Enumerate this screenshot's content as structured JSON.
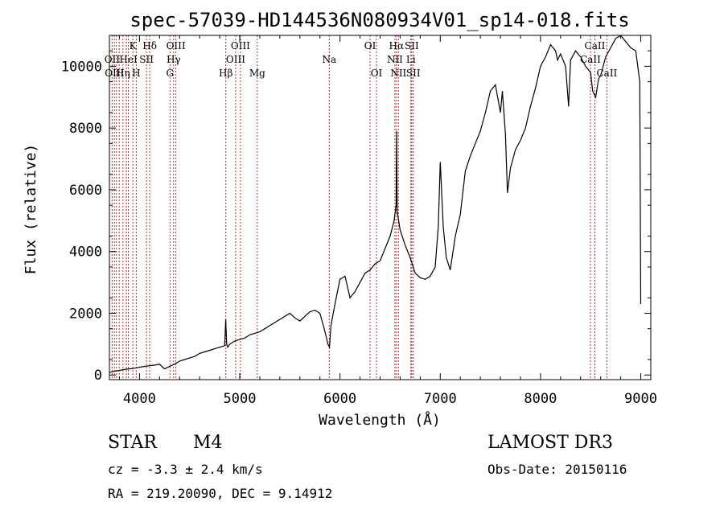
{
  "chart_data": {
    "type": "line",
    "title": "spec-57039-HD144536N080934V01_sp14-018.fits",
    "xlabel": "Wavelength (Å)",
    "ylabel": "Flux (relative)",
    "xlim": [
      3700,
      9100
    ],
    "ylim": [
      -150,
      11000
    ],
    "xticks": [
      4000,
      5000,
      6000,
      7000,
      8000,
      9000
    ],
    "yticks": [
      0,
      2000,
      4000,
      6000,
      8000,
      10000
    ],
    "series": [
      {
        "name": "flux",
        "x": [
          3700,
          3750,
          3800,
          3850,
          3900,
          3950,
          4000,
          4050,
          4100,
          4150,
          4200,
          4250,
          4300,
          4350,
          4400,
          4450,
          4500,
          4550,
          4600,
          4650,
          4700,
          4750,
          4800,
          4850,
          4860,
          4870,
          4880,
          4900,
          4950,
          5000,
          5050,
          5100,
          5150,
          5200,
          5250,
          5300,
          5350,
          5400,
          5450,
          5500,
          5550,
          5600,
          5650,
          5700,
          5750,
          5800,
          5850,
          5880,
          5895,
          5910,
          5950,
          6000,
          6050,
          6100,
          6150,
          6200,
          6250,
          6300,
          6350,
          6400,
          6450,
          6500,
          6540,
          6560,
          6565,
          6570,
          6600,
          6650,
          6700,
          6750,
          6800,
          6850,
          6900,
          6950,
          6980,
          7000,
          7030,
          7060,
          7100,
          7150,
          7200,
          7250,
          7300,
          7350,
          7400,
          7450,
          7500,
          7550,
          7600,
          7620,
          7650,
          7670,
          7700,
          7750,
          7800,
          7850,
          7900,
          7950,
          8000,
          8050,
          8100,
          8150,
          8170,
          8200,
          8250,
          8280,
          8300,
          8350,
          8400,
          8450,
          8500,
          8520,
          8550,
          8580,
          8600,
          8650,
          8700,
          8750,
          8800,
          8850,
          8900,
          8950,
          8990,
          9000
        ],
        "y": [
          80,
          120,
          150,
          180,
          200,
          220,
          250,
          280,
          300,
          320,
          350,
          200,
          280,
          350,
          450,
          500,
          550,
          600,
          700,
          750,
          800,
          850,
          900,
          950,
          1800,
          1000,
          900,
          1000,
          1100,
          1150,
          1200,
          1300,
          1350,
          1400,
          1500,
          1600,
          1700,
          1800,
          1900,
          2000,
          1850,
          1750,
          1900,
          2050,
          2100,
          2000,
          1400,
          1000,
          900,
          1600,
          2300,
          3100,
          3200,
          2500,
          2700,
          3000,
          3300,
          3400,
          3600,
          3700,
          4100,
          4500,
          5000,
          5500,
          7900,
          5300,
          4700,
          4200,
          3800,
          3300,
          3150,
          3100,
          3200,
          3500,
          4800,
          6900,
          4800,
          3800,
          3400,
          4500,
          5200,
          6600,
          7100,
          7500,
          7900,
          8500,
          9200,
          9400,
          8500,
          9200,
          7800,
          5900,
          6700,
          7300,
          7600,
          8000,
          8700,
          9300,
          10000,
          10300,
          10700,
          10500,
          10200,
          10400,
          10000,
          8700,
          10200,
          10500,
          10300,
          10000,
          9800,
          9200,
          9000,
          9600,
          9700,
          10300,
          10600,
          10900,
          11000,
          10800,
          10600,
          10500,
          9500,
          2300
        ]
      }
    ],
    "lines": [
      {
        "w": 3727,
        "label": "OII",
        "row": 1
      },
      {
        "w": 3750,
        "label": "OIII",
        "row": 2
      },
      {
        "w": 3770,
        "label": "",
        "row": 0
      },
      {
        "w": 3798,
        "label": "",
        "row": 0
      },
      {
        "w": 3835,
        "label": "Hη",
        "row": 2
      },
      {
        "w": 3869,
        "label": "",
        "row": 0
      },
      {
        "w": 3889,
        "label": "HeI",
        "row": 1
      },
      {
        "w": 3934,
        "label": "K",
        "row": 0
      },
      {
        "w": 3968,
        "label": "H",
        "row": 2
      },
      {
        "w": 4070,
        "label": "SII",
        "row": 1
      },
      {
        "w": 4102,
        "label": "Hδ",
        "row": 0
      },
      {
        "w": 4304,
        "label": "G",
        "row": 2
      },
      {
        "w": 4340,
        "label": "Hγ",
        "row": 1
      },
      {
        "w": 4363,
        "label": "OIII",
        "row": 0
      },
      {
        "w": 4861,
        "label": "Hβ",
        "row": 2
      },
      {
        "w": 4959,
        "label": "OIII",
        "row": 1
      },
      {
        "w": 5007,
        "label": "OIII",
        "row": 0
      },
      {
        "w": 5175,
        "label": "Mg",
        "row": 2
      },
      {
        "w": 5893,
        "label": "Na",
        "row": 1
      },
      {
        "w": 6300,
        "label": "OI",
        "row": 0
      },
      {
        "w": 6364,
        "label": "OI",
        "row": 2
      },
      {
        "w": 6548,
        "label": "NII",
        "row": 1
      },
      {
        "w": 6563,
        "label": "Hα",
        "row": 0
      },
      {
        "w": 6583,
        "label": "NII",
        "row": 2
      },
      {
        "w": 6707,
        "label": "Li",
        "row": 1
      },
      {
        "w": 6716,
        "label": "SII",
        "row": 0
      },
      {
        "w": 6731,
        "label": "SII",
        "row": 2
      },
      {
        "w": 8498,
        "label": "CaII",
        "row": 1
      },
      {
        "w": 8542,
        "label": "CaII",
        "row": 0
      },
      {
        "w": 8662,
        "label": "CaII",
        "row": 2
      }
    ]
  },
  "info": {
    "class": "STAR",
    "subclass": "M4",
    "survey": "LAMOST DR3",
    "cz": "cz = -3.3 ± 2.4 km/s",
    "obs_date": "Obs-Date: 20150116",
    "radec": "RA = 219.20090, DEC =   9.14912"
  }
}
